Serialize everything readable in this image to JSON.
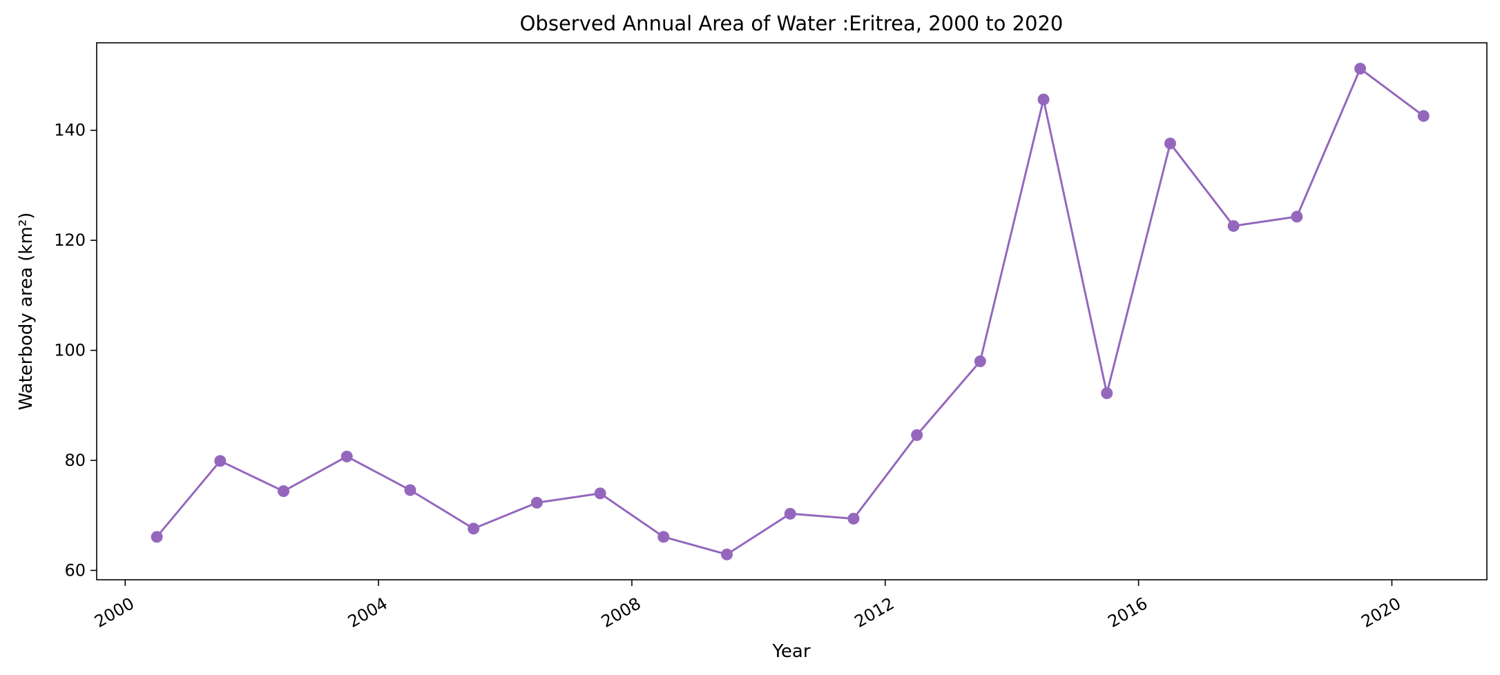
{
  "chart_data": {
    "type": "line",
    "title": "Observed Annual Area of Water :Eritrea, 2000 to 2020",
    "xlabel": "Year",
    "ylabel": "Waterbody area (km²)",
    "x_ticks": [
      "2000",
      "2004",
      "2008",
      "2012",
      "2016",
      "2020"
    ],
    "y_ticks": [
      60,
      80,
      100,
      120,
      140
    ],
    "xlim": [
      1999.55,
      2021.5
    ],
    "ylim": [
      58.3,
      155.9
    ],
    "grid": false,
    "legend": "none",
    "series": [
      {
        "color": "#9467bd",
        "x": [
          2000.5,
          2001.5,
          2002.5,
          2003.5,
          2004.5,
          2005.5,
          2006.5,
          2007.5,
          2008.5,
          2009.5,
          2010.5,
          2011.5,
          2012.5,
          2013.5,
          2014.5,
          2015.5,
          2016.5,
          2017.5,
          2018.5,
          2019.5,
          2020.5
        ],
        "values": [
          66.1,
          79.9,
          74.4,
          80.7,
          74.6,
          67.6,
          72.3,
          74.0,
          66.1,
          62.9,
          70.3,
          69.4,
          84.6,
          98.0,
          145.6,
          92.2,
          137.6,
          122.6,
          124.3,
          151.2,
          142.6
        ]
      }
    ]
  }
}
